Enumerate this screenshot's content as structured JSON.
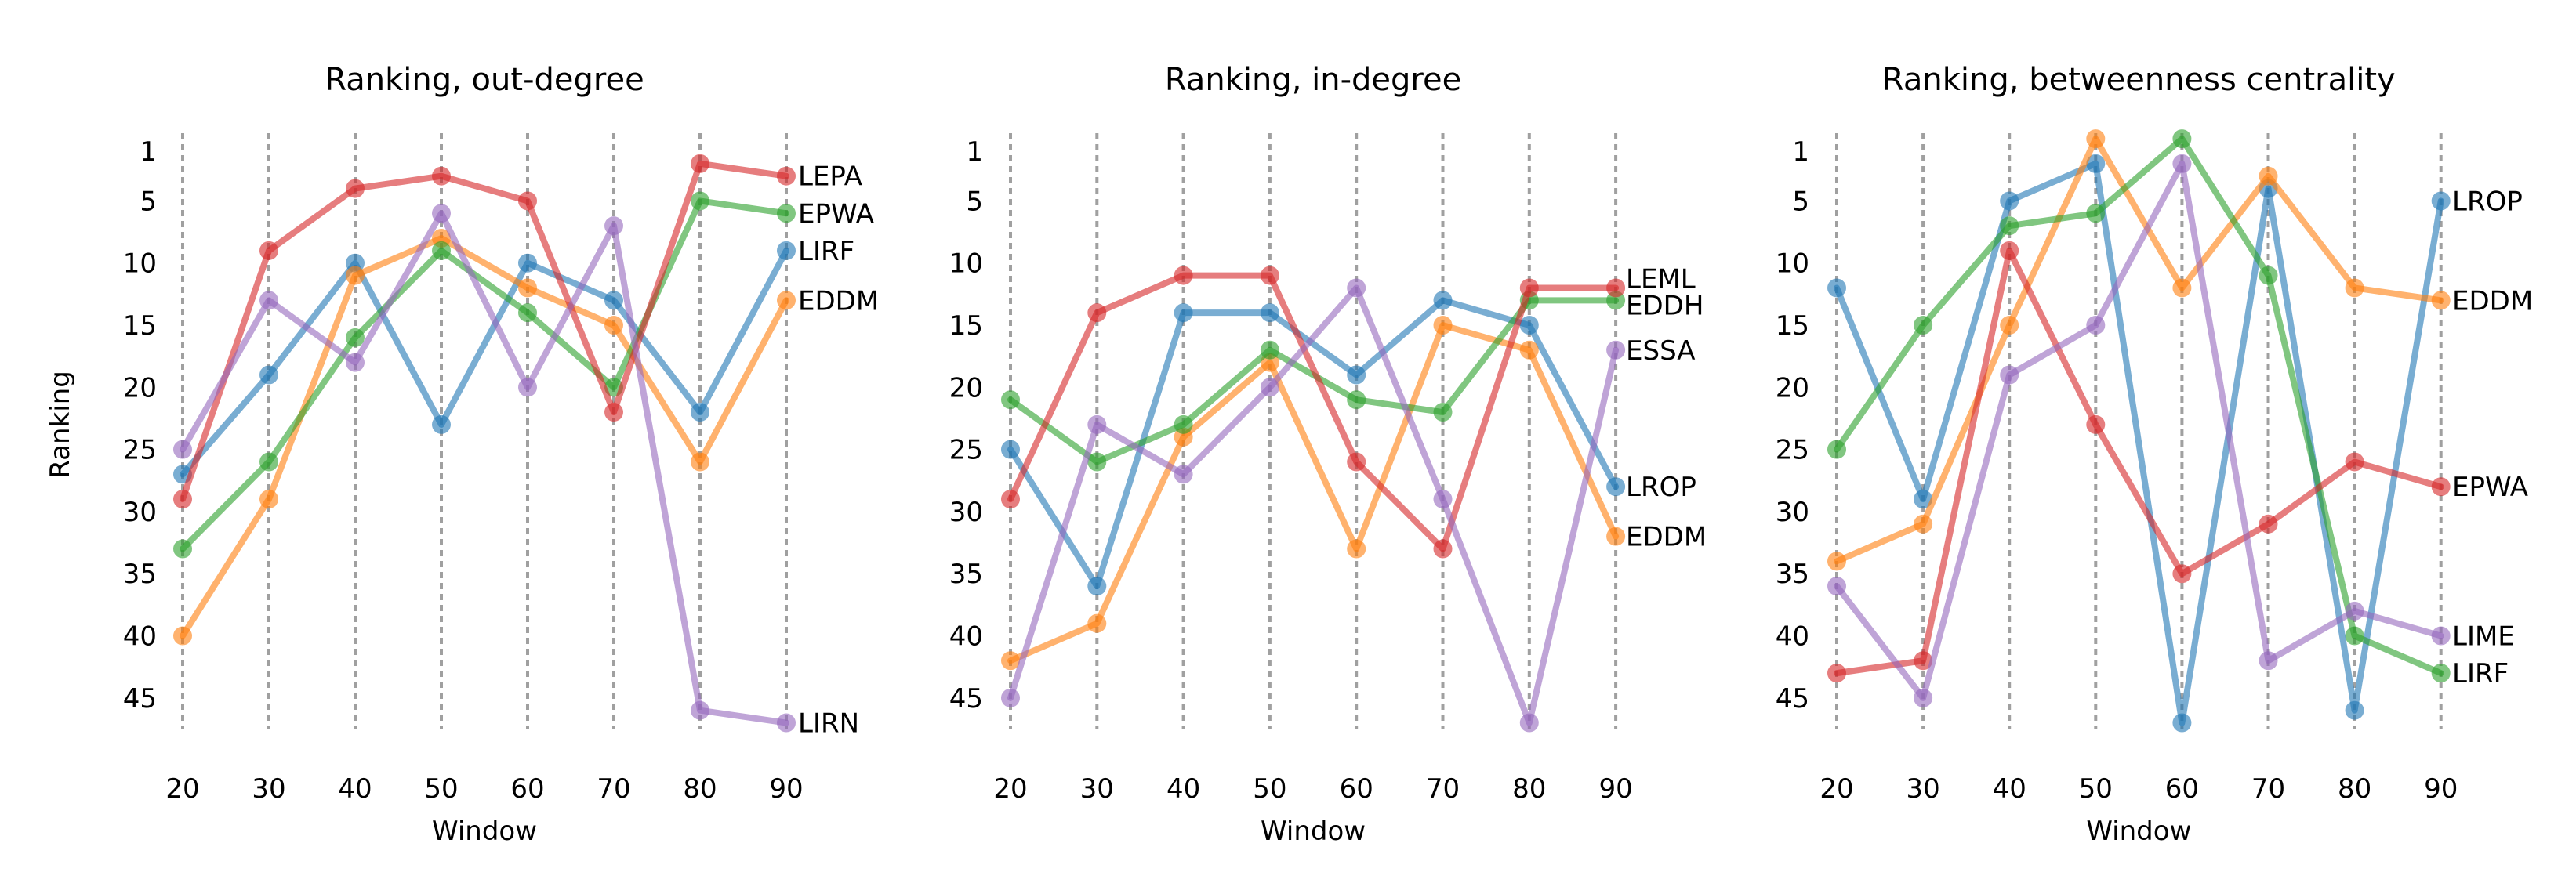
{
  "colors": {
    "blue": "#1f77b4",
    "orange": "#ff7f0e",
    "green": "#2ca02c",
    "red": "#d62728",
    "purple": "#9467bd",
    "gridline": "#a0a0a0"
  },
  "chart_data": [
    {
      "type": "line",
      "title": "Ranking, out-degree",
      "xlabel": "Window",
      "ylabel": "Ranking",
      "x": [
        20,
        30,
        40,
        50,
        60,
        70,
        80,
        90
      ],
      "yticks": [
        1,
        5,
        10,
        15,
        20,
        25,
        30,
        35,
        40,
        45
      ],
      "ylim": [
        0,
        48
      ],
      "y_inverted": true,
      "series": [
        {
          "name": "LIRF",
          "color": "blue",
          "values": [
            27,
            19,
            10,
            23,
            10,
            13,
            22,
            9
          ]
        },
        {
          "name": "EDDM",
          "color": "orange",
          "values": [
            40,
            29,
            11,
            8,
            12,
            15,
            26,
            13
          ]
        },
        {
          "name": "EPWA",
          "color": "green",
          "values": [
            33,
            26,
            16,
            9,
            14,
            20,
            5,
            6
          ]
        },
        {
          "name": "LEPA",
          "color": "red",
          "values": [
            29,
            9,
            4,
            3,
            5,
            22,
            2,
            3
          ]
        },
        {
          "name": "LIRN",
          "color": "purple",
          "values": [
            25,
            13,
            18,
            6,
            20,
            7,
            46,
            47
          ]
        }
      ]
    },
    {
      "type": "line",
      "title": "Ranking, in-degree",
      "xlabel": "Window",
      "ylabel": "",
      "x": [
        20,
        30,
        40,
        50,
        60,
        70,
        80,
        90
      ],
      "yticks": [
        1,
        5,
        10,
        15,
        20,
        25,
        30,
        35,
        40,
        45
      ],
      "ylim": [
        0,
        48
      ],
      "y_inverted": true,
      "series": [
        {
          "name": "LROP",
          "color": "blue",
          "values": [
            25,
            36,
            14,
            14,
            19,
            13,
            15,
            28
          ]
        },
        {
          "name": "EDDM",
          "color": "orange",
          "values": [
            42,
            39,
            24,
            18,
            33,
            15,
            17,
            32
          ]
        },
        {
          "name": "EDDH",
          "color": "green",
          "values": [
            21,
            26,
            23,
            17,
            21,
            22,
            13,
            13
          ]
        },
        {
          "name": "LEML",
          "color": "red",
          "values": [
            29,
            14,
            11,
            11,
            26,
            33,
            12,
            12
          ]
        },
        {
          "name": "ESSA",
          "color": "purple",
          "values": [
            45,
            23,
            27,
            20,
            12,
            29,
            47,
            17
          ]
        }
      ]
    },
    {
      "type": "line",
      "title": "Ranking, betweenness centrality",
      "xlabel": "Window",
      "ylabel": "",
      "x": [
        20,
        30,
        40,
        50,
        60,
        70,
        80,
        90
      ],
      "yticks": [
        1,
        5,
        10,
        15,
        20,
        25,
        30,
        35,
        40,
        45
      ],
      "ylim": [
        0,
        48
      ],
      "y_inverted": true,
      "series": [
        {
          "name": "LROP",
          "color": "blue",
          "values": [
            12,
            29,
            5,
            2,
            47,
            4,
            46,
            5
          ]
        },
        {
          "name": "EDDM",
          "color": "orange",
          "values": [
            34,
            31,
            15,
            0,
            12,
            3,
            12,
            13
          ]
        },
        {
          "name": "LIRF",
          "color": "green",
          "values": [
            25,
            15,
            7,
            6,
            0,
            11,
            40,
            43
          ]
        },
        {
          "name": "EPWA",
          "color": "red",
          "values": [
            43,
            42,
            9,
            23,
            35,
            31,
            26,
            28
          ]
        },
        {
          "name": "LIME",
          "color": "purple",
          "values": [
            36,
            45,
            19,
            15,
            2,
            42,
            38,
            40
          ]
        }
      ]
    }
  ]
}
